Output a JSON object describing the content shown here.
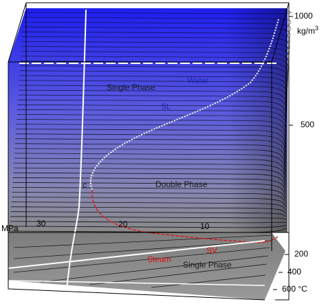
{
  "colors": {
    "surface_top": "#1e1eee",
    "surface_bottom": "#8a8a8a",
    "base_plane": "#8c8c8c",
    "contour_line": "#000000",
    "frame_line": "#000000",
    "highlight_line": "#ffffff",
    "saturated_liquid_curve": "#ffffff",
    "saturated_vapor_curve": "#e01010",
    "liquid_label": "#1a2bb0",
    "vapor_label": "#e01010"
  },
  "axes": {
    "density": {
      "ticks": [
        "1000",
        "500"
      ],
      "unit_prefix": "kg/m",
      "unit_superscript": "3"
    },
    "pressure": {
      "ticks": [
        "30",
        "20",
        "10"
      ],
      "unit": "MPa"
    },
    "temperature": {
      "ticks": [
        "200",
        "400",
        "600"
      ],
      "unit": "°C"
    }
  },
  "regions": {
    "single_phase_liquid": "Single Phase",
    "water": "Water",
    "saturated_liquid": "SL",
    "critical_point": "c",
    "double_phase": "Double Phase",
    "saturated_vapor": "SV",
    "steam": "Steam",
    "single_phase_vapor": "Single Phase"
  }
}
